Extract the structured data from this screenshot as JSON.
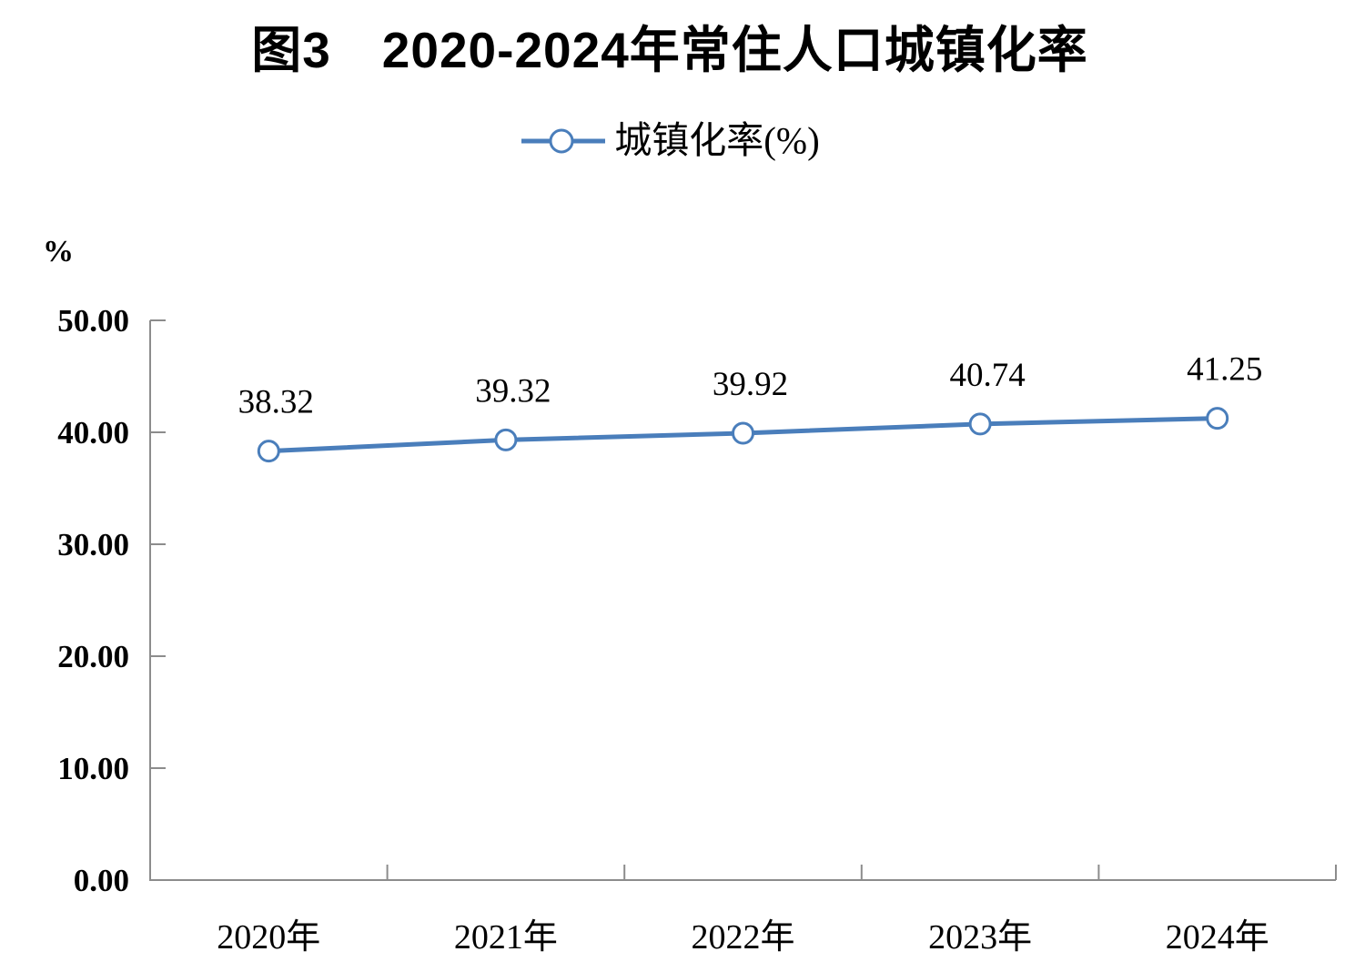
{
  "title": {
    "text": "图3　2020-2024年常住人口城镇化率"
  },
  "legend": {
    "label": "城镇化率(%)"
  },
  "y_axis_unit": "%",
  "colors": {
    "series_line": "#4a7ebb",
    "marker_fill": "#ffffff",
    "axis": "#8c8c8c",
    "text": "#000000"
  },
  "chart_data": {
    "type": "line",
    "title": "图3　2020-2024年常住人口城镇化率",
    "categories": [
      "2020年",
      "2021年",
      "2022年",
      "2023年",
      "2024年"
    ],
    "series": [
      {
        "name": "城镇化率(%)",
        "values": [
          38.32,
          39.32,
          39.92,
          40.74,
          41.25
        ]
      }
    ],
    "data_labels": [
      "38.32",
      "39.32",
      "39.92",
      "40.74",
      "41.25"
    ],
    "xlabel": "",
    "ylabel": "%",
    "ylim": [
      0,
      50
    ],
    "y_ticks": [
      "0.00",
      "10.00",
      "20.00",
      "30.00",
      "40.00",
      "50.00"
    ],
    "y_tick_values": [
      0,
      10,
      20,
      30,
      40,
      50
    ],
    "grid": false,
    "legend_position": "top",
    "marker_style": "circle-white-fill"
  }
}
